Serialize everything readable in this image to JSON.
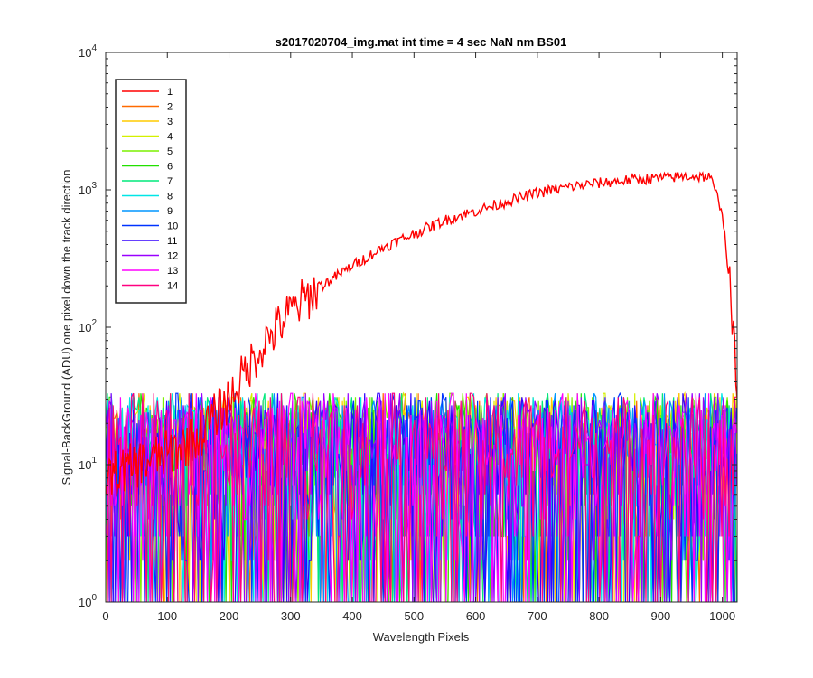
{
  "chart_data": {
    "type": "line",
    "title": "s2017020704_img.mat int time = 4 sec  NaN nm BS01",
    "xlabel": "Wavelength Pixels",
    "ylabel": "Signal-BackGround (ADU) one pixel down the track direction",
    "xlim": [
      0,
      1024
    ],
    "ylim": [
      1,
      10000
    ],
    "yscale": "log",
    "xticks": [
      0,
      100,
      200,
      300,
      400,
      500,
      600,
      700,
      800,
      900,
      1000
    ],
    "xtick_labels": [
      "0",
      "100",
      "200",
      "300",
      "400",
      "500",
      "600",
      "700",
      "800",
      "900",
      "1000"
    ],
    "yticks": [
      {
        "value": 1,
        "base": "10",
        "exp": "0"
      },
      {
        "value": 10,
        "base": "10",
        "exp": "1"
      },
      {
        "value": 100,
        "base": "10",
        "exp": "2"
      },
      {
        "value": 1000,
        "base": "10",
        "exp": "3"
      },
      {
        "value": 10000,
        "base": "10",
        "exp": "4"
      }
    ],
    "grid": false,
    "legend_position": "top-left",
    "series": [
      {
        "name": "1",
        "color": "#ff0000",
        "kind": "signal",
        "x": [
          0,
          50,
          100,
          150,
          200,
          250,
          300,
          350,
          400,
          450,
          500,
          550,
          600,
          650,
          700,
          750,
          800,
          850,
          900,
          950,
          980,
          1000,
          1010,
          1020,
          1024
        ],
        "y": [
          8,
          10,
          12,
          16,
          30,
          70,
          130,
          200,
          280,
          380,
          480,
          600,
          700,
          820,
          950,
          1050,
          1120,
          1180,
          1220,
          1260,
          1240,
          700,
          250,
          60,
          45
        ]
      },
      {
        "name": "2",
        "color": "#ff6a00",
        "kind": "noise"
      },
      {
        "name": "3",
        "color": "#ffcc00",
        "kind": "noise"
      },
      {
        "name": "4",
        "color": "#d4f000",
        "kind": "noise"
      },
      {
        "name": "5",
        "color": "#7cf000",
        "kind": "noise"
      },
      {
        "name": "6",
        "color": "#22e000",
        "kind": "noise"
      },
      {
        "name": "7",
        "color": "#00e87c",
        "kind": "noise"
      },
      {
        "name": "8",
        "color": "#00e6e6",
        "kind": "noise"
      },
      {
        "name": "9",
        "color": "#0096ff",
        "kind": "noise"
      },
      {
        "name": "10",
        "color": "#0033ff",
        "kind": "noise"
      },
      {
        "name": "11",
        "color": "#3300ff",
        "kind": "noise"
      },
      {
        "name": "12",
        "color": "#9900ff",
        "kind": "noise"
      },
      {
        "name": "13",
        "color": "#ff00ff",
        "kind": "noise"
      },
      {
        "name": "14",
        "color": "#ff0080",
        "kind": "noise"
      }
    ]
  }
}
